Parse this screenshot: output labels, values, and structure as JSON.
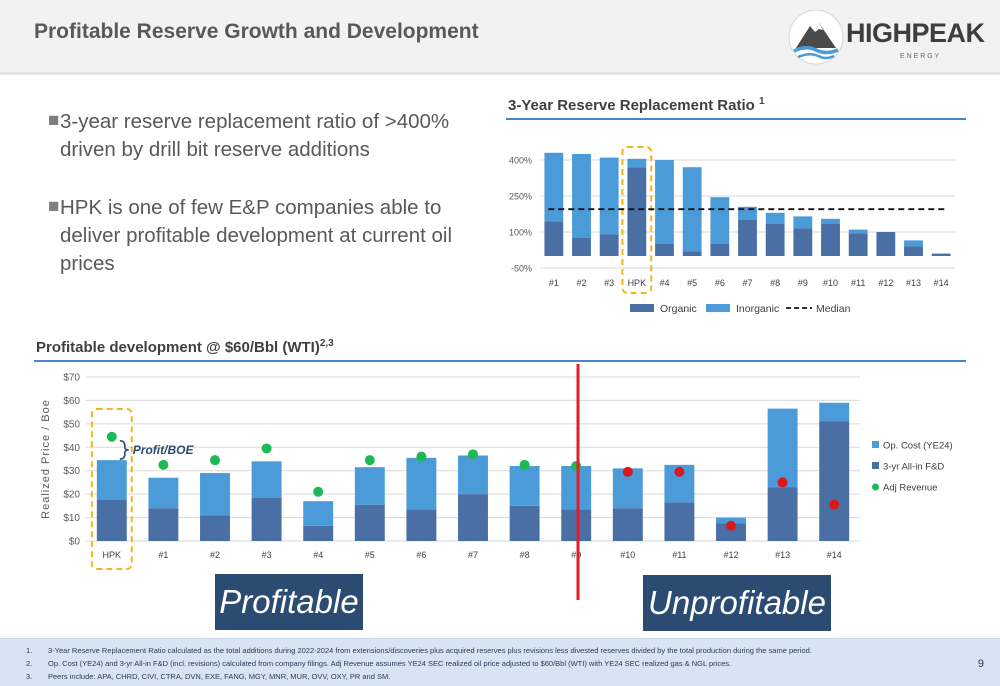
{
  "header": {
    "title": "Profitable Reserve Growth and Development",
    "logo": {
      "wordmark": "HIGHPEAK",
      "sub": "E N E R G Y",
      "icon": "mountain-logo-icon"
    }
  },
  "bullets": [
    "3-year reserve replacement ratio of >400% driven by drill bit reserve additions",
    "HPK is one of few E&P companies able to deliver profitable development at current oil prices"
  ],
  "rrr_section": {
    "title": "3-Year Reserve Replacement Ratio ",
    "sup": "1"
  },
  "dev_section": {
    "title": "Profitable development @ $60/Bbl (WTI)",
    "sup": "2,3"
  },
  "annotation": {
    "profit_label": "Profit/BOE"
  },
  "banners": {
    "left": "Profitable",
    "right": "Unprofitable"
  },
  "footnotes": [
    {
      "num": "1.",
      "text": "3-Year Reserve Replacement Ratio calculated as the total additions during 2022-2024 from extensions/discoveries plus acquired reserves plus revisions less divested reserves divided by the total production during the same period."
    },
    {
      "num": "2.",
      "text": "Op. Cost (YE24) and 3-yr All-in F&D (incl. revisions) calculated from company filings.  Adj Revenue assumes YE24 SEC realized oil price adjusted to $60/Bbl (WTI) with YE24 SEC realized gas & NGL prices."
    },
    {
      "num": "3.",
      "text": "Peers include: APA, CHRD, CIVI, CTRA, DVN, EXE, FANG, MGY, MNR, MUR, OVV, OXY, PR and SM."
    }
  ],
  "page_number": "9",
  "colors": {
    "organic": "#4a6fa5",
    "inorganic": "#4a9bd8",
    "revenue_green": "#1db954",
    "revenue_red": "#d7191c",
    "highlight": "#f2b51e",
    "divider": "#e31e24",
    "banner": "#2c4b72"
  },
  "chart_data": [
    {
      "type": "bar",
      "stacked": true,
      "categories": [
        "#1",
        "#2",
        "#3",
        "HPK",
        "#4",
        "#5",
        "#6",
        "#7",
        "#8",
        "#9",
        "#10",
        "#11",
        "#12",
        "#13",
        "#14"
      ],
      "highlight": "HPK",
      "y_ticks": [
        400,
        250,
        100,
        -50
      ],
      "y_tick_labels": [
        "400%",
        "250%",
        "100%",
        "-50%"
      ],
      "ylim": [
        -50,
        430
      ],
      "series": [
        {
          "name": "Organic",
          "values": [
            145,
            75,
            90,
            370,
            50,
            20,
            50,
            150,
            135,
            115,
            135,
            95,
            100,
            40,
            10
          ]
        },
        {
          "name": "Inorganic",
          "values": [
            285,
            350,
            320,
            35,
            350,
            350,
            195,
            55,
            45,
            50,
            20,
            15,
            0,
            25,
            0
          ]
        }
      ],
      "median": {
        "name": "Median",
        "value": 195
      },
      "legend": {
        "position": "bottom"
      }
    },
    {
      "type": "bar",
      "stacked": true,
      "categories": [
        "HPK",
        "#1",
        "#2",
        "#3",
        "#4",
        "#5",
        "#6",
        "#7",
        "#8",
        "#9",
        "#10",
        "#11",
        "#12",
        "#13",
        "#14"
      ],
      "highlight": "HPK",
      "ylabel": "Realized Price / Boe",
      "y_ticks": [
        0,
        10,
        20,
        30,
        40,
        50,
        60,
        70
      ],
      "y_tick_labels": [
        "$0",
        "$10",
        "$20",
        "$30",
        "$40",
        "$50",
        "$60",
        "$70"
      ],
      "ylim": [
        0,
        70
      ],
      "series": [
        {
          "name": "3-yr All-in F&D",
          "values": [
            17.5,
            14,
            11,
            18.5,
            6.5,
            15.5,
            13.5,
            20,
            15,
            13.5,
            14,
            16.5,
            7.5,
            23,
            51
          ]
        },
        {
          "name": "Op. Cost (YE24)",
          "values": [
            17,
            13,
            18,
            15.5,
            10.5,
            16,
            22,
            16.5,
            17,
            18.5,
            17,
            16,
            2.5,
            33.5,
            8
          ]
        }
      ],
      "markers": {
        "name": "Adj Revenue",
        "values": [
          44.5,
          32.5,
          34.5,
          39.5,
          21,
          34.5,
          36,
          37,
          32.5,
          32,
          29.5,
          29.5,
          6.5,
          25,
          15.5
        ]
      },
      "profitable_count": 10,
      "legend": {
        "position": "right"
      }
    }
  ]
}
